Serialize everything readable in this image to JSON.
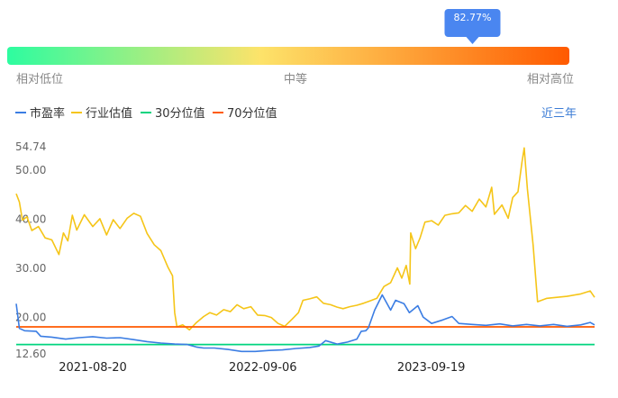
{
  "percentile_bar": {
    "marker_value": "82.77%",
    "marker_fraction": 0.8277,
    "gradient_colors": [
      "#2dfca0",
      "#fde36a",
      "#ff5a00"
    ],
    "labels": {
      "low": "相对低位",
      "mid": "中等",
      "high": "相对高位"
    }
  },
  "legend": {
    "items": [
      {
        "name": "市盈率",
        "color": "#3b7de3"
      },
      {
        "name": "行业估值",
        "color": "#f5c518"
      },
      {
        "name": "30分位值",
        "color": "#00d47f"
      },
      {
        "name": "70分位值",
        "color": "#ff5a00"
      }
    ],
    "period_label": "近三年"
  },
  "chart_data": {
    "type": "line",
    "ylim": [
      12.6,
      54.74
    ],
    "y_ticks": [
      "54.74",
      "50.00",
      "40.00",
      "30.00",
      "20.00",
      "12.60"
    ],
    "x_range": [
      "2021-03-01",
      "2024-09-20"
    ],
    "x_ticks": [
      "2021-08-20",
      "2022-09-06",
      "2023-09-19"
    ],
    "series": [
      {
        "name": "市盈率",
        "color": "#3b7de3",
        "points": [
          [
            "2021-03-01",
            22.8
          ],
          [
            "2021-03-08",
            17.8
          ],
          [
            "2021-03-20",
            17.3
          ],
          [
            "2021-04-15",
            17.2
          ],
          [
            "2021-04-25",
            16.2
          ],
          [
            "2021-05-20",
            16.0
          ],
          [
            "2021-06-20",
            15.6
          ],
          [
            "2021-07-20",
            15.9
          ],
          [
            "2021-08-20",
            16.1
          ],
          [
            "2021-09-20",
            15.8
          ],
          [
            "2021-10-20",
            15.9
          ],
          [
            "2021-11-20",
            15.5
          ],
          [
            "2021-12-20",
            15.1
          ],
          [
            "2022-01-20",
            14.8
          ],
          [
            "2022-02-20",
            14.6
          ],
          [
            "2022-03-20",
            14.5
          ],
          [
            "2022-04-10",
            14.0
          ],
          [
            "2022-04-26",
            13.8
          ],
          [
            "2022-05-20",
            13.8
          ],
          [
            "2022-06-20",
            13.5
          ],
          [
            "2022-07-20",
            13.1
          ],
          [
            "2022-08-20",
            13.1
          ],
          [
            "2022-09-20",
            13.3
          ],
          [
            "2022-10-20",
            13.4
          ],
          [
            "2022-11-20",
            13.7
          ],
          [
            "2022-12-20",
            13.9
          ],
          [
            "2023-01-10",
            14.2
          ],
          [
            "2023-01-25",
            15.3
          ],
          [
            "2023-02-20",
            14.6
          ],
          [
            "2023-03-15",
            15.0
          ],
          [
            "2023-04-05",
            15.6
          ],
          [
            "2023-04-15",
            17.2
          ],
          [
            "2023-04-25",
            17.3
          ],
          [
            "2023-05-01",
            17.9
          ],
          [
            "2023-05-15",
            21.5
          ],
          [
            "2023-06-01",
            24.6
          ],
          [
            "2023-06-20",
            21.5
          ],
          [
            "2023-07-01",
            23.5
          ],
          [
            "2023-07-20",
            22.8
          ],
          [
            "2023-08-01",
            21.0
          ],
          [
            "2023-08-20",
            22.4
          ],
          [
            "2023-09-01",
            20.1
          ],
          [
            "2023-09-20",
            18.8
          ],
          [
            "2023-10-15",
            19.5
          ],
          [
            "2023-11-05",
            20.2
          ],
          [
            "2023-11-20",
            18.8
          ],
          [
            "2023-12-20",
            18.6
          ],
          [
            "2024-01-20",
            18.4
          ],
          [
            "2024-02-20",
            18.7
          ],
          [
            "2024-03-20",
            18.3
          ],
          [
            "2024-04-20",
            18.6
          ],
          [
            "2024-05-20",
            18.3
          ],
          [
            "2024-06-20",
            18.6
          ],
          [
            "2024-07-20",
            18.2
          ],
          [
            "2024-08-20",
            18.5
          ],
          [
            "2024-09-10",
            19.0
          ],
          [
            "2024-09-20",
            18.5
          ]
        ]
      },
      {
        "name": "行业估值",
        "color": "#f5c518",
        "points": [
          [
            "2021-03-01",
            45.2
          ],
          [
            "2021-03-08",
            43.5
          ],
          [
            "2021-03-15",
            39.8
          ],
          [
            "2021-03-25",
            40.5
          ],
          [
            "2021-04-05",
            37.7
          ],
          [
            "2021-04-20",
            38.5
          ],
          [
            "2021-05-05",
            36.2
          ],
          [
            "2021-05-20",
            35.8
          ],
          [
            "2021-06-05",
            32.8
          ],
          [
            "2021-06-15",
            37.2
          ],
          [
            "2021-06-25",
            35.6
          ],
          [
            "2021-07-05",
            40.8
          ],
          [
            "2021-07-15",
            37.8
          ],
          [
            "2021-08-01",
            40.9
          ],
          [
            "2021-08-20",
            38.5
          ],
          [
            "2021-09-05",
            40.1
          ],
          [
            "2021-09-20",
            36.8
          ],
          [
            "2021-10-05",
            39.9
          ],
          [
            "2021-10-20",
            38.1
          ],
          [
            "2021-11-05",
            40.2
          ],
          [
            "2021-11-20",
            41.2
          ],
          [
            "2021-12-05",
            40.6
          ],
          [
            "2021-12-20",
            37.1
          ],
          [
            "2022-01-05",
            34.8
          ],
          [
            "2022-01-20",
            33.6
          ],
          [
            "2022-02-05",
            30.2
          ],
          [
            "2022-02-15",
            28.5
          ],
          [
            "2022-02-20",
            21.0
          ],
          [
            "2022-02-25",
            18.1
          ],
          [
            "2022-03-10",
            18.5
          ],
          [
            "2022-03-25",
            17.5
          ],
          [
            "2022-04-10",
            19.0
          ],
          [
            "2022-04-26",
            20.2
          ],
          [
            "2022-05-10",
            21.0
          ],
          [
            "2022-05-25",
            20.5
          ],
          [
            "2022-06-10",
            21.6
          ],
          [
            "2022-06-25",
            21.2
          ],
          [
            "2022-07-10",
            22.6
          ],
          [
            "2022-07-25",
            21.8
          ],
          [
            "2022-08-10",
            22.2
          ],
          [
            "2022-08-25",
            20.5
          ],
          [
            "2022-09-10",
            20.4
          ],
          [
            "2022-09-25",
            20.0
          ],
          [
            "2022-10-10",
            18.8
          ],
          [
            "2022-10-25",
            18.2
          ],
          [
            "2022-11-10",
            19.6
          ],
          [
            "2022-11-25",
            21.0
          ],
          [
            "2022-12-05",
            23.5
          ],
          [
            "2022-12-20",
            23.8
          ],
          [
            "2023-01-05",
            24.2
          ],
          [
            "2023-01-20",
            22.9
          ],
          [
            "2023-02-05",
            22.6
          ],
          [
            "2023-02-20",
            22.1
          ],
          [
            "2023-03-05",
            21.8
          ],
          [
            "2023-03-20",
            22.2
          ],
          [
            "2023-04-05",
            22.5
          ],
          [
            "2023-04-20",
            22.9
          ],
          [
            "2023-05-05",
            23.4
          ],
          [
            "2023-05-20",
            23.9
          ],
          [
            "2023-06-05",
            26.3
          ],
          [
            "2023-06-20",
            27.1
          ],
          [
            "2023-07-05",
            30.1
          ],
          [
            "2023-07-15",
            28.0
          ],
          [
            "2023-07-25",
            30.6
          ],
          [
            "2023-08-02",
            26.8
          ],
          [
            "2023-08-04",
            37.2
          ],
          [
            "2023-08-15",
            34.0
          ],
          [
            "2023-08-25",
            36.2
          ],
          [
            "2023-09-05",
            39.4
          ],
          [
            "2023-09-20",
            39.7
          ],
          [
            "2023-10-05",
            38.8
          ],
          [
            "2023-10-20",
            40.8
          ],
          [
            "2023-11-05",
            41.1
          ],
          [
            "2023-11-20",
            41.3
          ],
          [
            "2023-12-05",
            42.8
          ],
          [
            "2023-12-20",
            41.6
          ],
          [
            "2024-01-05",
            44.1
          ],
          [
            "2024-01-20",
            42.5
          ],
          [
            "2024-02-02",
            46.5
          ],
          [
            "2024-02-08",
            41.0
          ],
          [
            "2024-02-25",
            42.9
          ],
          [
            "2024-03-10",
            40.2
          ],
          [
            "2024-03-20",
            44.4
          ],
          [
            "2024-04-01",
            45.6
          ],
          [
            "2024-04-10",
            51.6
          ],
          [
            "2024-04-15",
            54.5
          ],
          [
            "2024-04-22",
            46.2
          ],
          [
            "2024-05-05",
            34.7
          ],
          [
            "2024-05-15",
            23.2
          ],
          [
            "2024-06-05",
            23.9
          ],
          [
            "2024-07-20",
            24.3
          ],
          [
            "2024-08-20",
            24.8
          ],
          [
            "2024-09-10",
            25.4
          ],
          [
            "2024-09-20",
            24.1
          ]
        ]
      },
      {
        "name": "30分位值",
        "color": "#00d47f",
        "points": [
          [
            "2021-03-01",
            14.5
          ],
          [
            "2024-09-20",
            14.5
          ]
        ]
      },
      {
        "name": "70分位值",
        "color": "#ff5a00",
        "points": [
          [
            "2021-03-01",
            18.1
          ],
          [
            "2024-09-20",
            18.1
          ]
        ]
      }
    ]
  }
}
